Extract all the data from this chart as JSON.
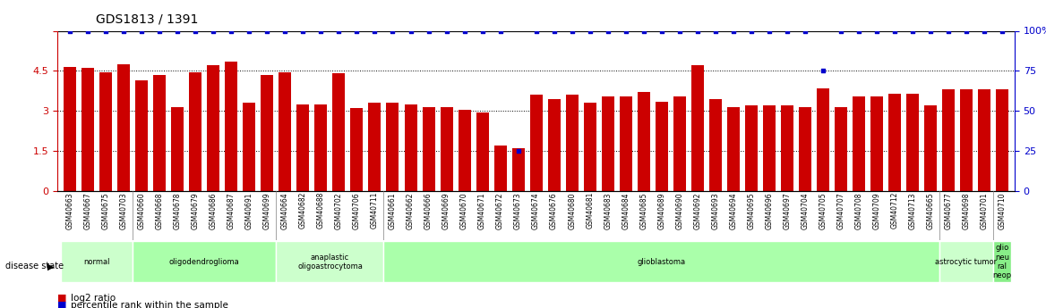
{
  "title": "GDS1813 / 1391",
  "samples": [
    "GSM40663",
    "GSM40667",
    "GSM40675",
    "GSM40703",
    "GSM40660",
    "GSM40668",
    "GSM40678",
    "GSM40679",
    "GSM40686",
    "GSM40687",
    "GSM40691",
    "GSM40699",
    "GSM40664",
    "GSM40682",
    "GSM40688",
    "GSM40702",
    "GSM40706",
    "GSM40711",
    "GSM40661",
    "GSM40662",
    "GSM40666",
    "GSM40669",
    "GSM40670",
    "GSM40671",
    "GSM40672",
    "GSM40673",
    "GSM40674",
    "GSM40676",
    "GSM40680",
    "GSM40681",
    "GSM40683",
    "GSM40684",
    "GSM40685",
    "GSM40689",
    "GSM40690",
    "GSM40692",
    "GSM40693",
    "GSM40694",
    "GSM40695",
    "GSM40696",
    "GSM40697",
    "GSM40704",
    "GSM40705",
    "GSM40707",
    "GSM40708",
    "GSM40709",
    "GSM40712",
    "GSM40713",
    "GSM40665",
    "GSM40677",
    "GSM40698",
    "GSM40701",
    "GSM40710"
  ],
  "log2_ratio": [
    4.65,
    4.6,
    4.45,
    4.75,
    4.15,
    4.35,
    3.15,
    4.45,
    4.7,
    4.85,
    3.3,
    4.35,
    4.45,
    3.25,
    3.25,
    4.4,
    3.1,
    3.3,
    3.3,
    3.25,
    3.15,
    3.15,
    3.05,
    2.95,
    1.7,
    1.6,
    3.6,
    3.45,
    3.6,
    3.3,
    3.55,
    3.55,
    3.7,
    3.35,
    3.55,
    4.7,
    3.45,
    3.15,
    3.2,
    3.2,
    3.2,
    3.15,
    3.85,
    3.15,
    3.55,
    3.55,
    3.65,
    3.65,
    3.2,
    3.8,
    3.8,
    3.8,
    3.8
  ],
  "percentile": [
    100,
    100,
    100,
    100,
    100,
    100,
    100,
    100,
    100,
    100,
    100,
    100,
    100,
    100,
    100,
    100,
    100,
    100,
    100,
    100,
    100,
    100,
    100,
    100,
    100,
    25,
    100,
    100,
    100,
    100,
    100,
    100,
    100,
    100,
    100,
    100,
    100,
    100,
    100,
    100,
    100,
    100,
    75,
    100,
    100,
    100,
    100,
    100,
    100,
    100,
    100,
    100,
    100
  ],
  "disease_groups": [
    {
      "label": "normal",
      "start": 0,
      "end": 4,
      "color": "#ccffcc"
    },
    {
      "label": "oligodendroglioma",
      "start": 4,
      "end": 12,
      "color": "#aaffaa"
    },
    {
      "label": "anaplastic\noligoastrocytoma",
      "start": 12,
      "end": 18,
      "color": "#ccffcc"
    },
    {
      "label": "glioblastoma",
      "start": 18,
      "end": 49,
      "color": "#aaffaa"
    },
    {
      "label": "astrocytic tumor",
      "start": 49,
      "end": 52,
      "color": "#ccffcc"
    },
    {
      "label": "glio\nneu\nral\nneop",
      "start": 52,
      "end": 53,
      "color": "#88ee88"
    }
  ],
  "bar_color": "#cc0000",
  "dot_color": "#0000cc",
  "ylim_left": [
    0,
    6
  ],
  "ylim_right": [
    0,
    100
  ],
  "yticks_left": [
    0,
    1.5,
    3.0,
    4.5,
    6.0
  ],
  "ytick_labels_left": [
    "0",
    "1.5",
    "3",
    "4.5",
    ""
  ],
  "yticks_right": [
    0,
    25,
    50,
    75,
    100
  ],
  "ytick_labels_right": [
    "0",
    "25",
    "50",
    "75",
    "100%"
  ],
  "xlabel_color": "#cc0000",
  "ylabel_left_color": "#cc0000",
  "ylabel_right_color": "#0000cc",
  "bg_color": "#ffffff",
  "plot_area_bg": "#f5f5f5"
}
